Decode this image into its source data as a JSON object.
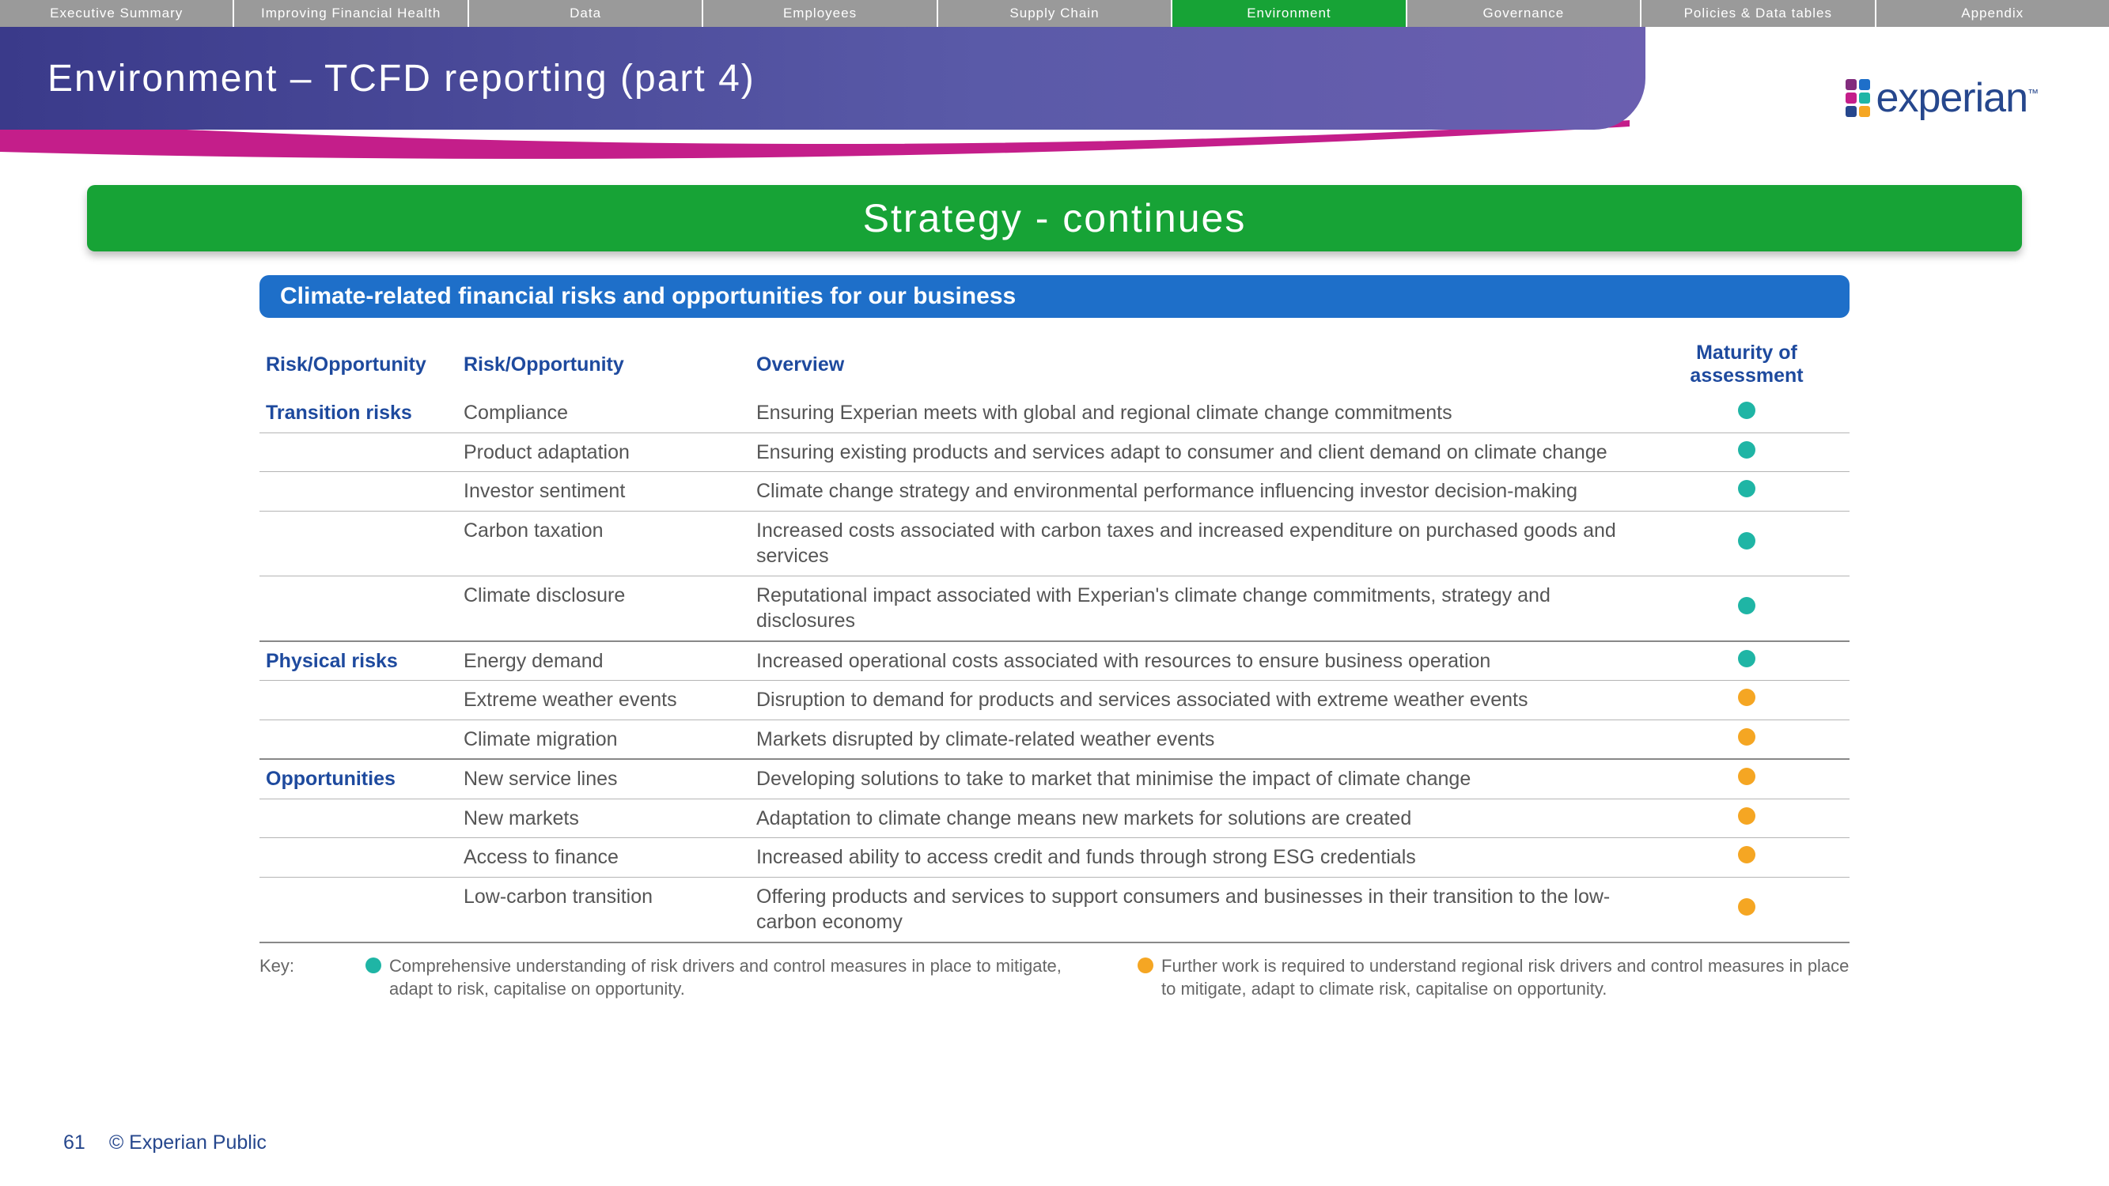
{
  "colors": {
    "nav_inactive_bg": "#9a9a9a",
    "nav_active_bg": "#17a336",
    "nav_text": "#ffffff",
    "title_bg_gradient": [
      "#3a3a8a",
      "#5a5aa8",
      "#6b5fb0"
    ],
    "title_text": "#ffffff",
    "swoosh": "#c41e8a",
    "section_banner_bg": "#17a336",
    "subheader_bg": "#1e6fc9",
    "table_header_text": "#1e4a9e",
    "table_body_text": "#555555",
    "row_border": "#b5b5b5",
    "group_border": "#888888",
    "dot_comprehensive": "#1fb5a5",
    "dot_further": "#f5a623",
    "logo_text": "#26478d",
    "logo_dots": [
      "#822c7d",
      "#1e6fc9",
      "#c41e8a",
      "#1fb5a5",
      "#26478d",
      "#f5a623"
    ]
  },
  "nav": {
    "items": [
      {
        "label": "Executive Summary",
        "active": false
      },
      {
        "label": "Improving Financial Health",
        "active": false
      },
      {
        "label": "Data",
        "active": false
      },
      {
        "label": "Employees",
        "active": false
      },
      {
        "label": "Supply Chain",
        "active": false
      },
      {
        "label": "Environment",
        "active": true
      },
      {
        "label": "Governance",
        "active": false
      },
      {
        "label": "Policies & Data tables",
        "active": false
      },
      {
        "label": "Appendix",
        "active": false
      }
    ]
  },
  "header": {
    "title": "Environment – TCFD reporting (part 4)",
    "logo_text": "experian",
    "logo_tm": "™"
  },
  "section_banner": "Strategy - continues",
  "subheader": "Climate-related financial risks and opportunities for our business",
  "table": {
    "columns": [
      "Risk/Opportunity",
      "Risk/Opportunity",
      "Overview",
      "Maturity of assessment"
    ],
    "groups": [
      {
        "category": "Transition risks",
        "rows": [
          {
            "ro": "Compliance",
            "overview": "Ensuring Experian meets with global and regional climate change commitments",
            "maturity": "comprehensive"
          },
          {
            "ro": "Product adaptation",
            "overview": "Ensuring existing products and services adapt to consumer and client demand on climate change",
            "maturity": "comprehensive"
          },
          {
            "ro": "Investor sentiment",
            "overview": "Climate change strategy and environmental performance influencing investor decision-making",
            "maturity": "comprehensive"
          },
          {
            "ro": "Carbon taxation",
            "overview": "Increased costs associated with carbon taxes and increased expenditure on purchased goods and services",
            "maturity": "comprehensive"
          },
          {
            "ro": "Climate disclosure",
            "overview": "Reputational impact associated with Experian's climate change commitments, strategy and disclosures",
            "maturity": "comprehensive"
          }
        ]
      },
      {
        "category": "Physical risks",
        "rows": [
          {
            "ro": "Energy demand",
            "overview": "Increased operational costs associated with resources to ensure business operation",
            "maturity": "comprehensive"
          },
          {
            "ro": "Extreme weather events",
            "overview": "Disruption to demand for products and services associated with extreme weather events",
            "maturity": "further"
          },
          {
            "ro": "Climate migration",
            "overview": "Markets disrupted by climate-related weather events",
            "maturity": "further"
          }
        ]
      },
      {
        "category": "Opportunities",
        "rows": [
          {
            "ro": "New service lines",
            "overview": "Developing solutions to take to market that minimise the impact of climate change",
            "maturity": "further"
          },
          {
            "ro": "New markets",
            "overview": "Adaptation to climate change means new markets for solutions are created",
            "maturity": "further"
          },
          {
            "ro": "Access to finance",
            "overview": "Increased ability to access credit and funds through strong ESG credentials",
            "maturity": "further"
          },
          {
            "ro": "Low-carbon transition",
            "overview": "Offering products and services to support consumers and businesses in their transition to the low-carbon economy",
            "maturity": "further"
          }
        ]
      }
    ]
  },
  "key": {
    "label": "Key:",
    "items": [
      {
        "type": "comprehensive",
        "text": "Comprehensive understanding of risk drivers and control measures in place to mitigate, adapt to risk, capitalise on opportunity."
      },
      {
        "type": "further",
        "text": "Further work is required to understand regional risk drivers and control measures in place to mitigate, adapt to climate risk, capitalise on opportunity."
      }
    ]
  },
  "footer": {
    "page": "61",
    "copyright": "© Experian Public"
  }
}
